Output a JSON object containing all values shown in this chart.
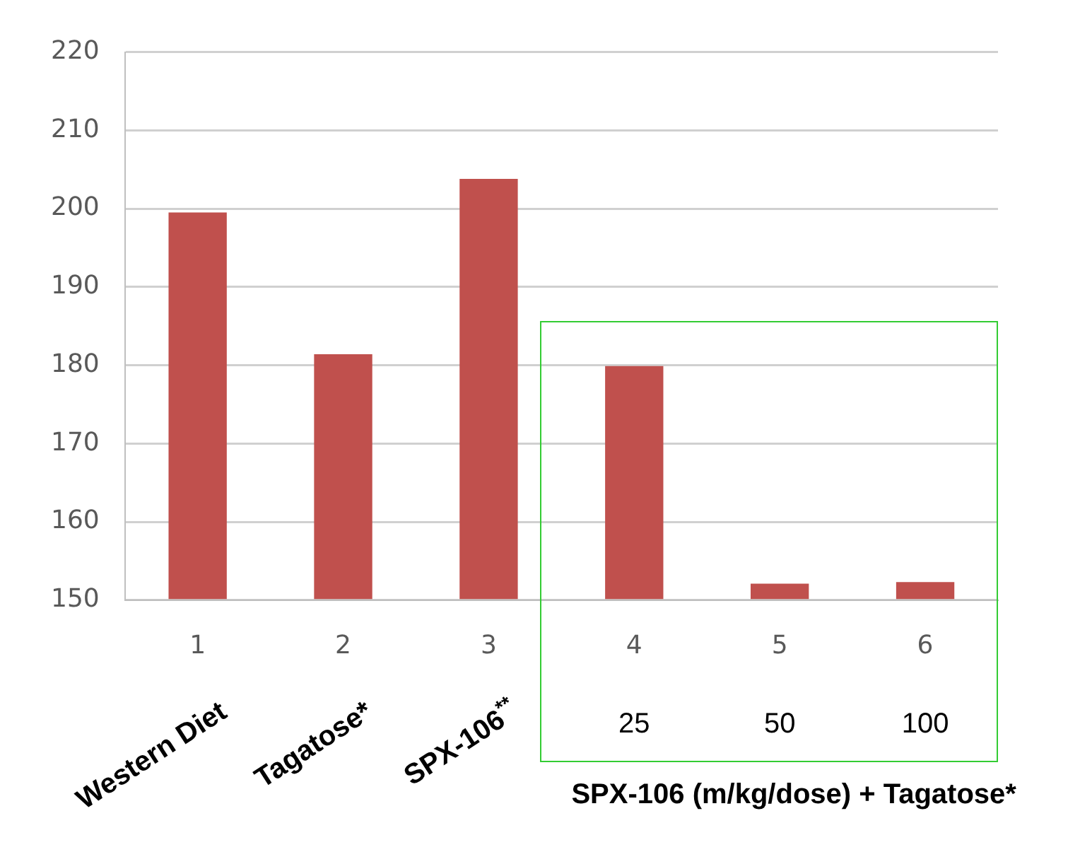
{
  "chart_data": {
    "type": "bar",
    "categories": [
      "1",
      "2",
      "3",
      "4",
      "5",
      "6"
    ],
    "values": [
      199.5,
      181.4,
      203.8,
      179.9,
      152.1,
      152.3
    ],
    "color": "#c0504d",
    "ylim": [
      150,
      220
    ],
    "yticks": [
      150,
      160,
      170,
      180,
      190,
      200,
      210,
      220
    ],
    "grid": "y",
    "legend": false,
    "annotations": [
      "Western Diet",
      "Tagatose*",
      "SPX-106$^{**}$",
      "25",
      "50",
      "100",
      "SPX-106 (m/kg/dose) + Tagatose*"
    ]
  }
}
